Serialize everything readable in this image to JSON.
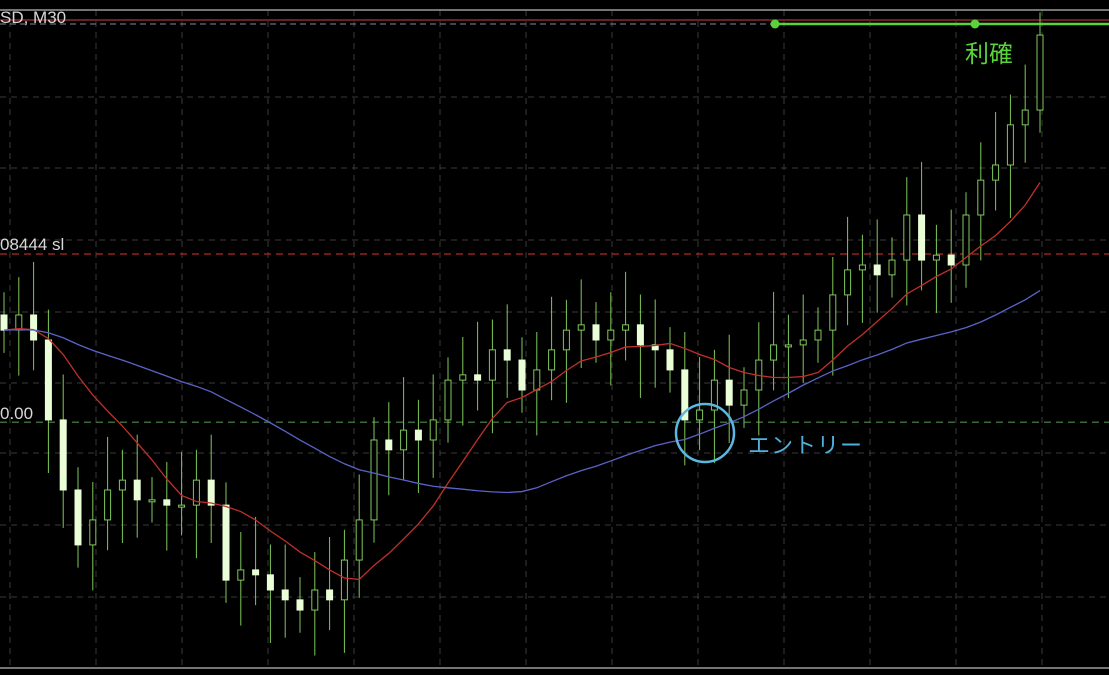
{
  "header": {
    "symbol_timeframe": "SD, M30"
  },
  "levels": {
    "sl_label": "08444 sl",
    "entry_label": "0.00"
  },
  "annotations": {
    "take_profit": "利確",
    "entry": "エントリー"
  },
  "colors": {
    "background": "#000000",
    "bull_candle": "#7fc85a",
    "bear_candle": "#eaffd8",
    "ma_fast": "#c0302a",
    "ma_slow": "#5a63c8",
    "take_profit_line": "#58d33a",
    "stop_loss_line": "#b02a2a",
    "entry_line": "#4e8a4e",
    "entry_circle": "#5bb8e0"
  },
  "chart_data": {
    "type": "candlestick",
    "title": "",
    "timeframe": "M30",
    "levels": {
      "take_profit": 1.0905,
      "stop_loss": 1.08444,
      "entry": 1.08
    },
    "ylim": [
      1.0742,
      1.0914
    ],
    "grid": true,
    "closes": [
      1.08243,
      1.08283,
      1.08217,
      1.08006,
      1.07821,
      1.07676,
      1.07742,
      1.07821,
      1.07847,
      1.07795,
      1.07795,
      1.07781,
      1.07781,
      1.07847,
      1.07781,
      1.07583,
      1.0761,
      1.07597,
      1.07557,
      1.07531,
      1.07504,
      1.07557,
      1.07531,
      1.07636,
      1.07742,
      1.07953,
      1.07927,
      1.07979,
      1.07953,
      1.08006,
      1.08111,
      1.08125,
      1.08111,
      1.08191,
      1.08164,
      1.08085,
      1.08138,
      1.08191,
      1.08243,
      1.08257,
      1.08217,
      1.08243,
      1.08257,
      1.08204,
      1.08191,
      1.08138,
      1.08006,
      1.08032,
      1.08111,
      1.08045,
      1.08085,
      1.08164,
      1.08204,
      1.08204,
      1.08217,
      1.08243,
      1.08336,
      1.08402,
      1.08415,
      1.08389,
      1.08428,
      1.08547,
      1.08428,
      1.08441,
      1.08415,
      1.08547,
      1.08639,
      1.08679,
      1.08785,
      1.08824,
      1.09022
    ]
  }
}
